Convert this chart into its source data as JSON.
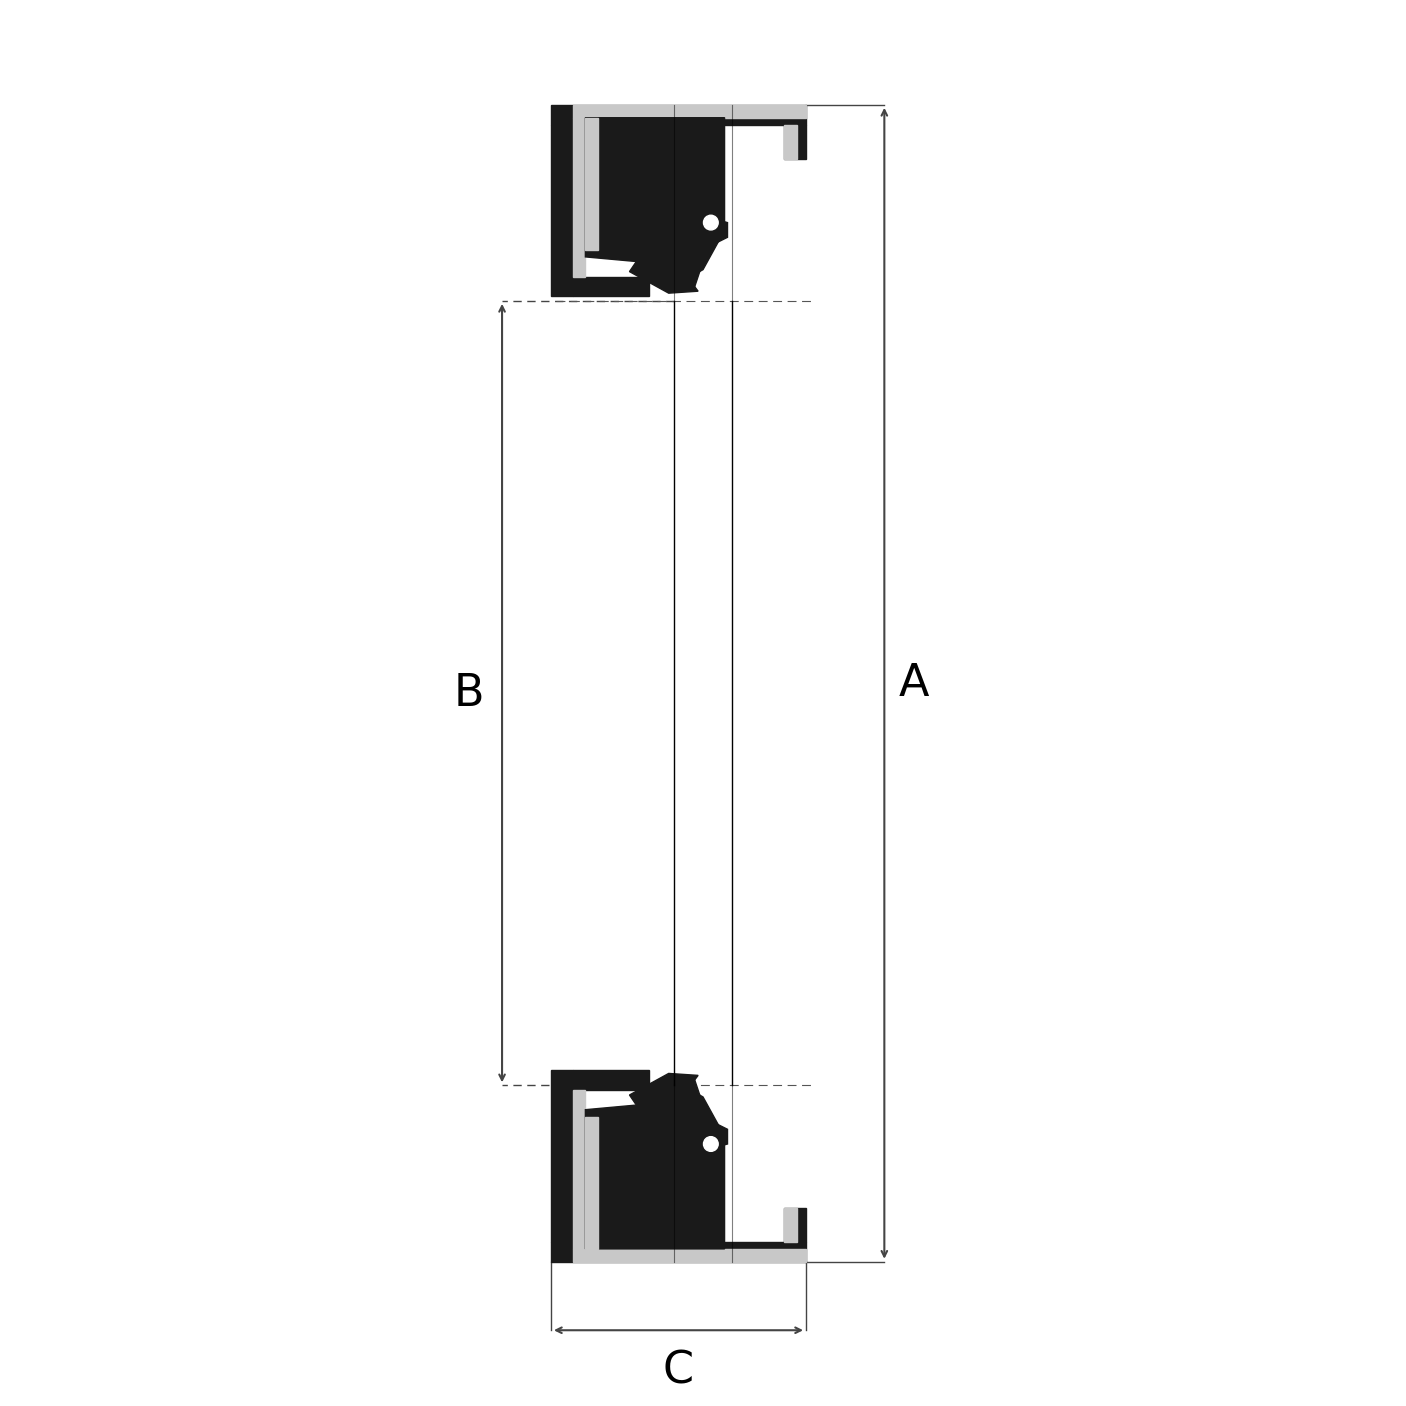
{
  "bg_color": "#ffffff",
  "line_color": "#000000",
  "fill_black": "#1a1a1a",
  "fill_gray": "#c8c8c8",
  "fill_white": "#ffffff",
  "dim_color": "#444444",
  "dim_line_color": "#555555",
  "label_A": "A",
  "label_B": "B",
  "label_C": "C",
  "label_fontsize": 32,
  "figsize": [
    14.06,
    14.06
  ],
  "dpi": 100
}
